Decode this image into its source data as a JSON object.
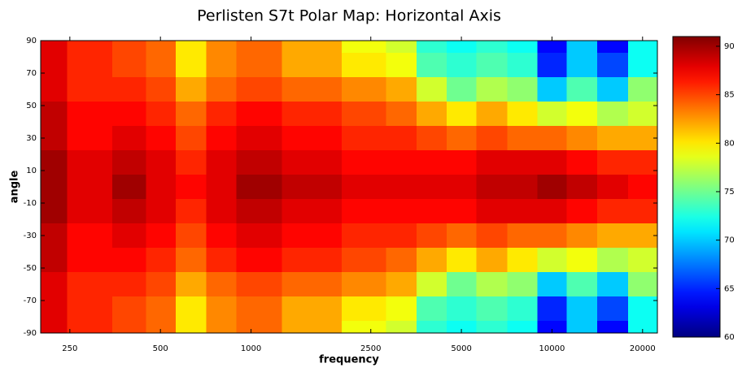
{
  "chart_data": {
    "type": "heatmap",
    "title": "Perlisten S7t Polar Map: Horizontal Axis",
    "x_label": "frequency",
    "y_label": "angle",
    "x": [
      200,
      300,
      400,
      500,
      630,
      800,
      1000,
      1600,
      2500,
      3150,
      4000,
      5000,
      6300,
      8000,
      10000,
      12500,
      16000,
      20000
    ],
    "y": [
      90,
      75,
      60,
      45,
      30,
      15,
      0,
      -15,
      -30,
      -45,
      -60,
      -75,
      -90
    ],
    "z": [
      [
        88,
        86,
        85,
        84,
        80,
        83,
        84,
        82,
        79,
        78,
        73,
        72,
        73,
        72,
        64,
        70,
        64,
        72
      ],
      [
        88,
        86,
        85,
        84,
        80,
        83,
        84,
        82,
        80,
        79,
        74,
        73,
        74,
        73,
        65,
        70,
        66,
        72
      ],
      [
        88,
        86,
        86,
        85,
        82,
        84,
        85,
        84,
        83,
        82,
        78,
        75,
        77,
        76,
        70,
        74,
        70,
        76
      ],
      [
        89,
        87,
        87,
        86,
        84,
        86,
        87,
        86,
        85,
        84,
        82,
        80,
        82,
        80,
        78,
        79,
        77,
        78
      ],
      [
        89,
        87,
        88,
        87,
        85,
        87,
        88,
        87,
        86,
        86,
        85,
        84,
        85,
        84,
        84,
        83,
        82,
        82
      ],
      [
        90,
        88,
        89,
        88,
        86,
        88,
        89,
        88,
        87,
        87,
        87,
        87,
        88,
        88,
        88,
        87,
        86,
        86
      ],
      [
        90,
        88,
        90,
        88,
        87,
        88,
        90,
        89,
        88,
        88,
        88,
        88,
        89,
        89,
        90,
        89,
        88,
        87
      ],
      [
        90,
        88,
        89,
        88,
        86,
        88,
        89,
        88,
        87,
        87,
        87,
        87,
        88,
        88,
        88,
        87,
        86,
        86
      ],
      [
        89,
        87,
        88,
        87,
        85,
        87,
        88,
        87,
        86,
        86,
        85,
        84,
        85,
        84,
        84,
        83,
        82,
        82
      ],
      [
        89,
        87,
        87,
        86,
        84,
        86,
        87,
        86,
        85,
        84,
        82,
        80,
        82,
        80,
        78,
        79,
        77,
        78
      ],
      [
        88,
        86,
        86,
        85,
        82,
        84,
        85,
        84,
        83,
        82,
        78,
        75,
        77,
        76,
        70,
        74,
        70,
        76
      ],
      [
        88,
        86,
        85,
        84,
        80,
        83,
        84,
        82,
        80,
        79,
        74,
        73,
        74,
        73,
        65,
        70,
        66,
        72
      ],
      [
        88,
        86,
        85,
        84,
        80,
        83,
        84,
        82,
        79,
        78,
        73,
        72,
        73,
        72,
        64,
        70,
        64,
        72
      ]
    ],
    "colormap": "jet",
    "clim": [
      60,
      91
    ],
    "xscale": "log",
    "xlim": [
      200,
      22400
    ],
    "xticks": [
      250,
      500,
      1000,
      2500,
      5000,
      10000,
      20000
    ],
    "ylim": [
      -90,
      90
    ],
    "yticks": [
      90,
      70,
      50,
      30,
      10,
      -10,
      -30,
      -50,
      -70,
      -90
    ],
    "cticks": [
      60,
      65,
      70,
      75,
      80,
      85,
      90
    ]
  }
}
